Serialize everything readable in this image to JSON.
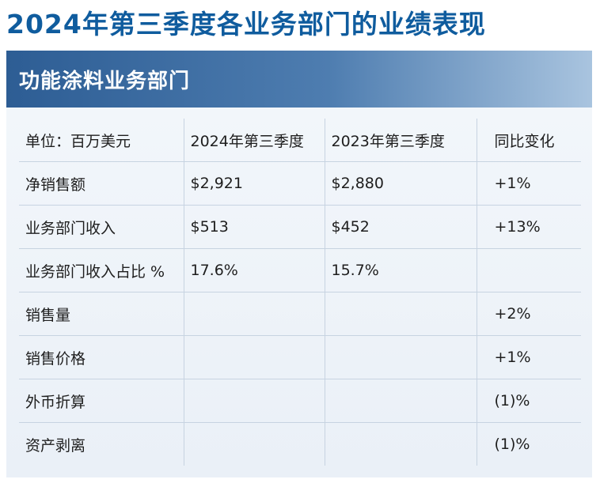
{
  "page_title": "2024年第三季度各业务部门的业绩表现",
  "section_title": "功能涂料业务部门",
  "table": {
    "header": [
      "单位：百万美元",
      "2024年第三季度",
      "2023年第三季度",
      "同比变化"
    ],
    "rows": [
      [
        "净销售额",
        "$2,921",
        "$2,880",
        "+1%"
      ],
      [
        "业务部门收入",
        "$513",
        "$452",
        "+13%"
      ],
      [
        "业务部门收入占比 %",
        "17.6%",
        "15.7%",
        ""
      ],
      [
        "销售量",
        "",
        "",
        "+2%"
      ],
      [
        "销售价格",
        "",
        "",
        "+1%"
      ],
      [
        "外币折算",
        "",
        "",
        "(1)%"
      ],
      [
        "资产剥离",
        "",
        "",
        "(1)%"
      ]
    ]
  }
}
